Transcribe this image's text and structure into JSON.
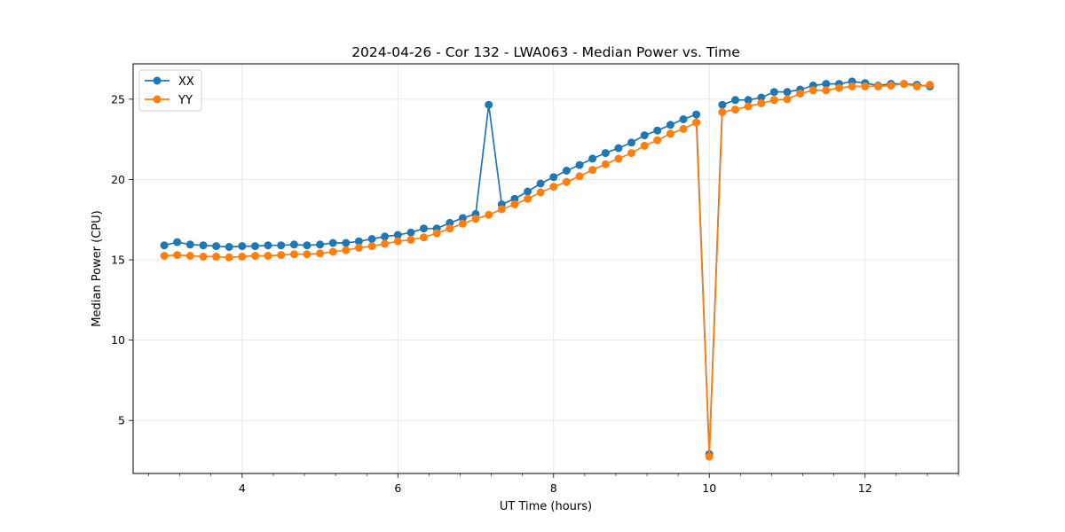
{
  "chart_data": {
    "type": "line",
    "title": "2024-04-26 - Cor 132 - LWA063 - Median Power vs. Time",
    "xlabel": "UT Time (hours)",
    "ylabel": "Median Power (CPU)",
    "xlim": [
      2.6,
      13.2
    ],
    "ylim": [
      1.7,
      27.2
    ],
    "xticks": [
      4,
      6,
      8,
      10,
      12
    ],
    "xtick_labels": [
      "4",
      "6",
      "8",
      "10",
      "12"
    ],
    "yticks": [
      5,
      10,
      15,
      20,
      25
    ],
    "ytick_labels": [
      "5",
      "10",
      "15",
      "20",
      "25"
    ],
    "grid": true,
    "legend": "upper-left",
    "x": [
      3.0,
      3.167,
      3.333,
      3.5,
      3.667,
      3.833,
      4.0,
      4.167,
      4.333,
      4.5,
      4.667,
      4.833,
      5.0,
      5.167,
      5.333,
      5.5,
      5.667,
      5.833,
      6.0,
      6.167,
      6.333,
      6.5,
      6.667,
      6.833,
      7.0,
      7.167,
      7.333,
      7.5,
      7.667,
      7.833,
      8.0,
      8.167,
      8.333,
      8.5,
      8.667,
      8.833,
      9.0,
      9.167,
      9.333,
      9.5,
      9.667,
      9.833,
      10.0,
      10.167,
      10.333,
      10.5,
      10.667,
      10.833,
      11.0,
      11.167,
      11.333,
      11.5,
      11.667,
      11.833,
      12.0,
      12.167,
      12.333,
      12.5,
      12.667,
      12.833
    ],
    "series": [
      {
        "name": "XX",
        "color": "#1f77b4",
        "values": [
          15.9,
          16.1,
          15.95,
          15.9,
          15.85,
          15.8,
          15.85,
          15.85,
          15.9,
          15.9,
          15.95,
          15.9,
          15.95,
          16.05,
          16.05,
          16.15,
          16.3,
          16.45,
          16.55,
          16.7,
          16.95,
          16.95,
          17.3,
          17.6,
          17.85,
          24.65,
          18.45,
          18.8,
          19.25,
          19.75,
          20.15,
          20.55,
          20.9,
          21.3,
          21.65,
          21.95,
          22.3,
          22.75,
          23.05,
          23.4,
          23.75,
          24.05,
          2.9,
          24.65,
          24.95,
          24.95,
          25.1,
          25.45,
          25.45,
          25.6,
          25.85,
          25.95,
          25.95,
          26.1,
          26.0,
          25.85,
          25.95,
          25.95,
          25.9,
          25.8
        ]
      },
      {
        "name": "YY",
        "color": "#ff7f0e",
        "values": [
          15.25,
          15.3,
          15.25,
          15.2,
          15.2,
          15.15,
          15.2,
          15.25,
          15.25,
          15.3,
          15.35,
          15.35,
          15.4,
          15.5,
          15.6,
          15.75,
          15.85,
          16.0,
          16.15,
          16.25,
          16.4,
          16.65,
          16.95,
          17.25,
          17.55,
          17.8,
          18.15,
          18.45,
          18.8,
          19.2,
          19.55,
          19.85,
          20.2,
          20.6,
          20.95,
          21.3,
          21.65,
          22.1,
          22.45,
          22.85,
          23.15,
          23.55,
          2.75,
          24.2,
          24.35,
          24.55,
          24.75,
          24.95,
          25.0,
          25.35,
          25.55,
          25.55,
          25.7,
          25.8,
          25.8,
          25.8,
          25.85,
          25.95,
          25.8,
          25.9
        ]
      }
    ]
  }
}
